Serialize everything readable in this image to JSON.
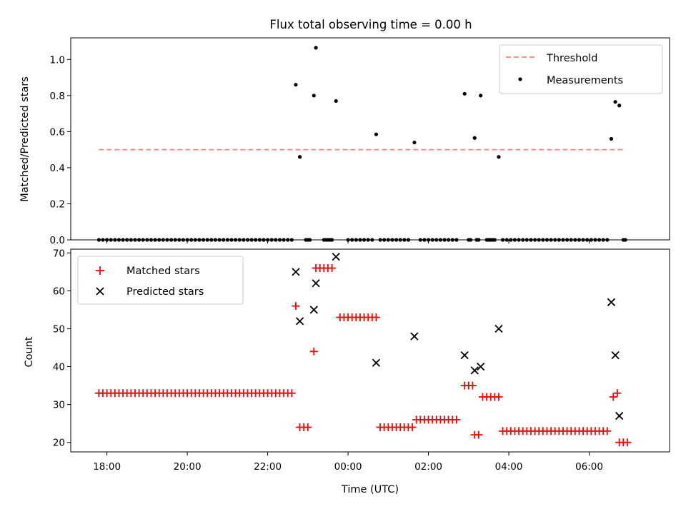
{
  "chart_data": [
    {
      "type": "scatter",
      "title": "Flux total observing time = 0.00 h",
      "xlabel": "",
      "ylabel": "Matched/Predicted stars",
      "xlim": [
        -6.9,
        8.0
      ],
      "ylim": [
        0,
        1.12
      ],
      "yticks": [
        0.0,
        0.2,
        0.4,
        0.6,
        0.8,
        1.0
      ],
      "ytick_labels": [
        "0.0",
        "0.2",
        "0.4",
        "0.6",
        "0.8",
        "1.0"
      ],
      "legend_position": "top-right",
      "threshold": {
        "name": "Threshold",
        "value": 0.5,
        "x_range": [
          -6.2,
          6.85
        ],
        "color": "#ff7f7f",
        "style": "dashed"
      },
      "measurements": {
        "name": "Measurements",
        "color": "#000000",
        "nonzero": [
          [
            -1.3,
            0.86
          ],
          [
            -1.2,
            0.46
          ],
          [
            -0.85,
            0.8
          ],
          [
            -0.8,
            1.065
          ],
          [
            -0.3,
            0.77
          ],
          [
            0.7,
            0.585
          ],
          [
            1.65,
            0.54
          ],
          [
            2.9,
            0.81
          ],
          [
            3.15,
            0.565
          ],
          [
            3.3,
            0.8
          ],
          [
            3.75,
            0.46
          ],
          [
            6.55,
            0.56
          ],
          [
            6.65,
            0.765
          ],
          [
            6.75,
            0.745
          ]
        ],
        "zero_x": [
          -6.2,
          -6.1,
          -6.0,
          -5.9,
          -5.8,
          -5.7,
          -5.6,
          -5.5,
          -5.4,
          -5.3,
          -5.2,
          -5.1,
          -5.0,
          -4.9,
          -4.8,
          -4.7,
          -4.6,
          -4.5,
          -4.4,
          -4.3,
          -4.2,
          -4.1,
          -4.0,
          -3.9,
          -3.8,
          -3.7,
          -3.6,
          -3.5,
          -3.4,
          -3.3,
          -3.2,
          -3.1,
          -3.0,
          -2.9,
          -2.8,
          -2.7,
          -2.6,
          -2.5,
          -2.4,
          -2.3,
          -2.2,
          -2.1,
          -2.0,
          -1.9,
          -1.8,
          -1.7,
          -1.6,
          -1.5,
          -1.4,
          -1.05,
          -1.0,
          -0.95,
          -0.6,
          -0.55,
          -0.5,
          -0.45,
          -0.4,
          0.0,
          0.1,
          0.2,
          0.3,
          0.4,
          0.5,
          0.6,
          0.8,
          0.9,
          1.0,
          1.1,
          1.2,
          1.3,
          1.4,
          1.5,
          1.8,
          1.9,
          2.0,
          2.1,
          2.2,
          2.3,
          2.4,
          2.5,
          2.6,
          2.7,
          3.0,
          3.05,
          3.2,
          3.25,
          3.45,
          3.5,
          3.55,
          3.6,
          3.65,
          3.85,
          3.95,
          4.05,
          4.15,
          4.25,
          4.35,
          4.45,
          4.55,
          4.65,
          4.75,
          4.85,
          4.95,
          5.05,
          5.15,
          5.25,
          5.35,
          5.45,
          5.55,
          5.65,
          5.75,
          5.85,
          5.95,
          6.05,
          6.15,
          6.25,
          6.35,
          6.45,
          6.85,
          6.9
        ]
      }
    },
    {
      "type": "scatter",
      "title": "",
      "xlabel": "Time (UTC)",
      "ylabel": "Count",
      "xlim": [
        -6.9,
        8.0
      ],
      "ylim": [
        17.5,
        71
      ],
      "yticks": [
        20,
        30,
        40,
        50,
        60,
        70
      ],
      "ytick_labels": [
        "20",
        "30",
        "40",
        "50",
        "60",
        "70"
      ],
      "xticks": [
        -6.0,
        -4.0,
        -2.0,
        0.0,
        2.0,
        4.0,
        6.0
      ],
      "xtick_labels": [
        "18:00",
        "20:00",
        "22:00",
        "00:00",
        "02:00",
        "04:00",
        "06:00"
      ],
      "legend_position": "top-left",
      "series": [
        {
          "name": "Matched stars",
          "marker": "plus",
          "color": "#ff0000",
          "points": [
            [
              -6.2,
              33
            ],
            [
              -6.1,
              33
            ],
            [
              -6.0,
              33
            ],
            [
              -5.9,
              33
            ],
            [
              -5.8,
              33
            ],
            [
              -5.7,
              33
            ],
            [
              -5.6,
              33
            ],
            [
              -5.5,
              33
            ],
            [
              -5.4,
              33
            ],
            [
              -5.3,
              33
            ],
            [
              -5.2,
              33
            ],
            [
              -5.1,
              33
            ],
            [
              -5.0,
              33
            ],
            [
              -4.9,
              33
            ],
            [
              -4.8,
              33
            ],
            [
              -4.7,
              33
            ],
            [
              -4.6,
              33
            ],
            [
              -4.5,
              33
            ],
            [
              -4.4,
              33
            ],
            [
              -4.3,
              33
            ],
            [
              -4.2,
              33
            ],
            [
              -4.1,
              33
            ],
            [
              -4.0,
              33
            ],
            [
              -3.9,
              33
            ],
            [
              -3.8,
              33
            ],
            [
              -3.7,
              33
            ],
            [
              -3.6,
              33
            ],
            [
              -3.5,
              33
            ],
            [
              -3.4,
              33
            ],
            [
              -3.3,
              33
            ],
            [
              -3.2,
              33
            ],
            [
              -3.1,
              33
            ],
            [
              -3.0,
              33
            ],
            [
              -2.9,
              33
            ],
            [
              -2.8,
              33
            ],
            [
              -2.7,
              33
            ],
            [
              -2.6,
              33
            ],
            [
              -2.5,
              33
            ],
            [
              -2.4,
              33
            ],
            [
              -2.3,
              33
            ],
            [
              -2.2,
              33
            ],
            [
              -2.1,
              33
            ],
            [
              -2.0,
              33
            ],
            [
              -1.9,
              33
            ],
            [
              -1.8,
              33
            ],
            [
              -1.7,
              33
            ],
            [
              -1.6,
              33
            ],
            [
              -1.5,
              33
            ],
            [
              -1.4,
              33
            ],
            [
              -1.3,
              56
            ],
            [
              -1.2,
              24
            ],
            [
              -1.1,
              24
            ],
            [
              -1.0,
              24
            ],
            [
              -0.85,
              44
            ],
            [
              -0.8,
              66
            ],
            [
              -0.7,
              66
            ],
            [
              -0.6,
              66
            ],
            [
              -0.5,
              66
            ],
            [
              -0.4,
              66
            ],
            [
              -0.2,
              53
            ],
            [
              -0.1,
              53
            ],
            [
              0.0,
              53
            ],
            [
              0.1,
              53
            ],
            [
              0.2,
              53
            ],
            [
              0.3,
              53
            ],
            [
              0.4,
              53
            ],
            [
              0.5,
              53
            ],
            [
              0.6,
              53
            ],
            [
              0.7,
              53
            ],
            [
              0.8,
              24
            ],
            [
              0.9,
              24
            ],
            [
              1.0,
              24
            ],
            [
              1.1,
              24
            ],
            [
              1.2,
              24
            ],
            [
              1.3,
              24
            ],
            [
              1.4,
              24
            ],
            [
              1.5,
              24
            ],
            [
              1.6,
              24
            ],
            [
              1.7,
              26
            ],
            [
              1.8,
              26
            ],
            [
              1.9,
              26
            ],
            [
              2.0,
              26
            ],
            [
              2.1,
              26
            ],
            [
              2.2,
              26
            ],
            [
              2.3,
              26
            ],
            [
              2.4,
              26
            ],
            [
              2.5,
              26
            ],
            [
              2.6,
              26
            ],
            [
              2.7,
              26
            ],
            [
              2.9,
              35
            ],
            [
              3.0,
              35
            ],
            [
              3.1,
              35
            ],
            [
              3.15,
              22
            ],
            [
              3.25,
              22
            ],
            [
              3.35,
              32
            ],
            [
              3.45,
              32
            ],
            [
              3.55,
              32
            ],
            [
              3.65,
              32
            ],
            [
              3.75,
              32
            ],
            [
              3.85,
              23
            ],
            [
              3.95,
              23
            ],
            [
              4.05,
              23
            ],
            [
              4.15,
              23
            ],
            [
              4.25,
              23
            ],
            [
              4.35,
              23
            ],
            [
              4.45,
              23
            ],
            [
              4.55,
              23
            ],
            [
              4.65,
              23
            ],
            [
              4.75,
              23
            ],
            [
              4.85,
              23
            ],
            [
              4.95,
              23
            ],
            [
              5.05,
              23
            ],
            [
              5.15,
              23
            ],
            [
              5.25,
              23
            ],
            [
              5.35,
              23
            ],
            [
              5.45,
              23
            ],
            [
              5.55,
              23
            ],
            [
              5.65,
              23
            ],
            [
              5.75,
              23
            ],
            [
              5.85,
              23
            ],
            [
              5.95,
              23
            ],
            [
              6.05,
              23
            ],
            [
              6.15,
              23
            ],
            [
              6.25,
              23
            ],
            [
              6.35,
              23
            ],
            [
              6.45,
              23
            ],
            [
              6.6,
              32
            ],
            [
              6.7,
              33
            ],
            [
              6.75,
              20
            ],
            [
              6.85,
              20
            ],
            [
              6.95,
              20
            ]
          ]
        },
        {
          "name": "Predicted stars",
          "marker": "x",
          "color": "#000000",
          "points": [
            [
              -1.3,
              65
            ],
            [
              -1.2,
              52
            ],
            [
              -0.85,
              55
            ],
            [
              -0.8,
              62
            ],
            [
              -0.3,
              69
            ],
            [
              0.7,
              41
            ],
            [
              1.65,
              48
            ],
            [
              2.9,
              43
            ],
            [
              3.15,
              39
            ],
            [
              3.3,
              40
            ],
            [
              3.75,
              50
            ],
            [
              6.55,
              57
            ],
            [
              6.65,
              43
            ],
            [
              6.75,
              27
            ]
          ]
        }
      ]
    }
  ]
}
